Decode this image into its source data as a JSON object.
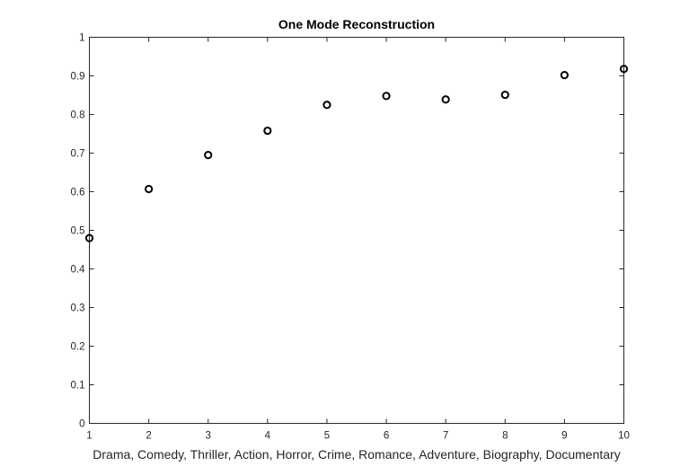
{
  "chart_data": {
    "type": "scatter",
    "title": "One Mode Reconstruction",
    "xlabel": "Drama, Comedy, Thriller, Action, Horror, Crime, Romance, Adventure, Biography, Documentary",
    "ylabel": "",
    "xlim": [
      1,
      10
    ],
    "ylim": [
      0,
      1
    ],
    "xticks": [
      "1",
      "2",
      "3",
      "4",
      "5",
      "6",
      "7",
      "8",
      "9",
      "10"
    ],
    "yticks": [
      "0",
      "0.1",
      "0.2",
      "0.3",
      "0.4",
      "0.5",
      "0.6",
      "0.7",
      "0.8",
      "0.9",
      "1"
    ],
    "grid": false,
    "legend": "none",
    "marker": "circle-open",
    "series": [
      {
        "x": [
          1,
          2,
          3,
          4,
          5,
          6,
          7,
          8,
          9,
          10
        ],
        "y": [
          0.48,
          0.607,
          0.695,
          0.758,
          0.825,
          0.848,
          0.839,
          0.851,
          0.902,
          0.918
        ],
        "color": "#000000"
      }
    ]
  }
}
